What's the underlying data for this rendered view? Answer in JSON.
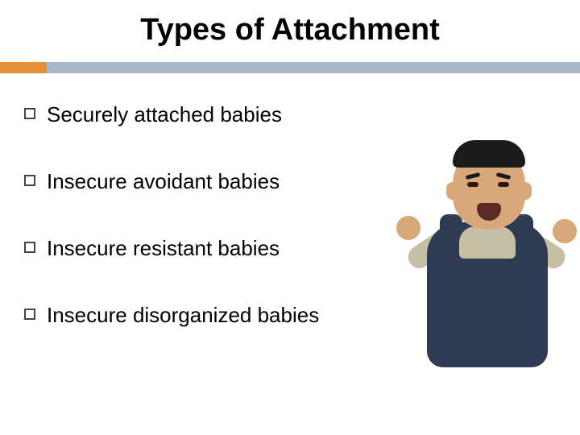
{
  "title": "Types of Attachment",
  "accent_color": "#e39036",
  "bar_color": "#a9b6cb",
  "bullets": [
    "Securely attached babies",
    "Insecure avoidant babies",
    "Insecure resistant babies",
    "Insecure disorganized babies"
  ],
  "photo": {
    "description": "crying-baby",
    "skin": "#d9a87a",
    "hair": "#1b1b1b",
    "overalls": "#2e3b52",
    "shirt": "#c6bfa6",
    "mouth": "#5a2a24"
  }
}
